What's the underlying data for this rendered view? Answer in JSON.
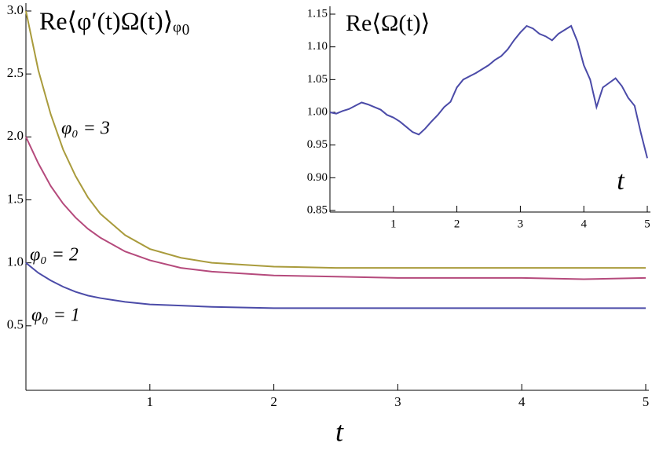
{
  "chart_data": [
    {
      "type": "line",
      "title": "Re⟨φ′(t)Ω(t)⟩ᵩ₀",
      "x_label": "t",
      "x": [
        0,
        0.1,
        0.2,
        0.3,
        0.4,
        0.5,
        0.6,
        0.8,
        1.0,
        1.25,
        1.5,
        2,
        2.5,
        3,
        3.5,
        4,
        4.5,
        5
      ],
      "series": [
        {
          "name": "φ₀ = 1",
          "color": "#4b4ba8",
          "values": [
            1.0,
            0.92,
            0.86,
            0.81,
            0.77,
            0.74,
            0.72,
            0.69,
            0.67,
            0.66,
            0.65,
            0.64,
            0.64,
            0.64,
            0.64,
            0.64,
            0.64,
            0.64
          ]
        },
        {
          "name": "φ₀ = 2",
          "color": "#b54a7c",
          "values": [
            2.0,
            1.79,
            1.61,
            1.47,
            1.36,
            1.27,
            1.2,
            1.09,
            1.02,
            0.96,
            0.93,
            0.9,
            0.89,
            0.88,
            0.88,
            0.88,
            0.87,
            0.88
          ]
        },
        {
          "name": "φ₀ = 3",
          "color": "#a99b3c",
          "values": [
            3.0,
            2.53,
            2.18,
            1.9,
            1.69,
            1.52,
            1.39,
            1.22,
            1.11,
            1.04,
            1.0,
            0.97,
            0.96,
            0.96,
            0.96,
            0.96,
            0.96,
            0.96
          ]
        }
      ],
      "xlim": [
        0,
        5
      ],
      "xticks": [
        1,
        2,
        3,
        4,
        5
      ],
      "ylim": [
        0,
        3.0
      ],
      "yticks": [
        0.5,
        {
          "value": 1,
          "label": "1.0"
        },
        1.5,
        {
          "value": 2,
          "label": "2.0"
        },
        2.5,
        {
          "value": 3,
          "label": "3.0"
        }
      ]
    },
    {
      "type": "line",
      "title": "Re⟨Ω(t)⟩",
      "x_label": "t",
      "x": [
        0,
        0.1,
        0.2,
        0.3,
        0.4,
        0.5,
        0.6,
        0.7,
        0.8,
        0.9,
        1.0,
        1.1,
        1.2,
        1.3,
        1.4,
        1.5,
        1.6,
        1.7,
        1.8,
        1.9,
        2.0,
        2.1,
        2.2,
        2.3,
        2.4,
        2.5,
        2.6,
        2.7,
        2.8,
        2.9,
        3.0,
        3.1,
        3.2,
        3.3,
        3.4,
        3.5,
        3.6,
        3.7,
        3.8,
        3.9,
        4.0,
        4.1,
        4.2,
        4.3,
        4.4,
        4.5,
        4.6,
        4.7,
        4.8,
        4.9,
        5.0
      ],
      "series": [
        {
          "color": "#4b4ba8",
          "values": [
            1.0,
            0.998,
            1.002,
            1.005,
            1.01,
            1.015,
            1.012,
            1.008,
            1.004,
            0.996,
            0.992,
            0.986,
            0.978,
            0.97,
            0.966,
            0.975,
            0.986,
            0.996,
            1.008,
            1.016,
            1.038,
            1.05,
            1.055,
            1.06,
            1.066,
            1.072,
            1.08,
            1.086,
            1.096,
            1.11,
            1.122,
            1.132,
            1.128,
            1.12,
            1.116,
            1.11,
            1.12,
            1.126,
            1.132,
            1.108,
            1.072,
            1.05,
            1.008,
            1.038,
            1.045,
            1.052,
            1.04,
            1.022,
            1.01,
            0.968,
            0.93
          ]
        }
      ],
      "xlim": [
        0,
        5
      ],
      "xticks": [
        1,
        2,
        3,
        4,
        5
      ],
      "ylim": [
        0.85,
        1.15
      ],
      "yticks": [
        0.85,
        {
          "value": 0.9,
          "label": "0.90"
        },
        0.95,
        {
          "value": 1,
          "label": "1.00"
        },
        1.05,
        {
          "value": 1.1,
          "label": "1.10"
        },
        1.15
      ]
    }
  ]
}
